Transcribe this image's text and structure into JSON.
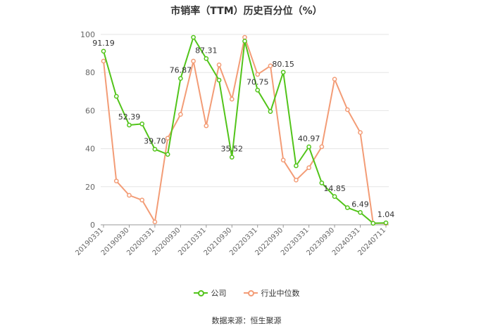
{
  "chart_data": {
    "type": "line",
    "title": "市销率（TTM）历史百分位（%）",
    "ylim": [
      0,
      100
    ],
    "yticks": [
      0,
      20,
      40,
      60,
      80,
      100
    ],
    "x_tick_labels": [
      "20190331",
      "20190930",
      "20200331",
      "20200930",
      "20210331",
      "20210930",
      "20220331",
      "20220930",
      "20230331",
      "20230930",
      "20240331",
      "20240711"
    ],
    "grid": "horizontal",
    "legend_position": "bottom",
    "x": [
      "20190331",
      "20190630",
      "20190930",
      "20191231",
      "20200331",
      "20200630",
      "20200930",
      "20201231",
      "20210331",
      "20210630",
      "20210930",
      "20211231",
      "20220331",
      "20220630",
      "20220930",
      "20221231",
      "20230331",
      "20230630",
      "20230930",
      "20231231",
      "20240331",
      "20240630",
      "20240711"
    ],
    "series": [
      {
        "name": "公司",
        "color": "#52c41a",
        "values": [
          91.19,
          67.5,
          52.39,
          53.0,
          39.7,
          37.0,
          76.87,
          98.5,
          87.31,
          76.0,
          35.52,
          96.5,
          70.75,
          59.5,
          80.15,
          31.0,
          40.97,
          22.0,
          14.85,
          9.0,
          6.49,
          0.8,
          1.04
        ],
        "labels": [
          "91.19",
          "",
          "52.39",
          "",
          "39.70",
          "",
          "76.87",
          "",
          "87.31",
          "",
          "35.52",
          "",
          "70.75",
          "",
          "80.15",
          "",
          "40.97",
          "",
          "14.85",
          "",
          "6.49",
          "",
          "1.04"
        ]
      },
      {
        "name": "行业中位数",
        "color": "#f39c76",
        "values": [
          86.0,
          23.0,
          15.5,
          13.0,
          1.5,
          45.5,
          58.0,
          86.0,
          52.0,
          84.0,
          66.0,
          98.5,
          79.0,
          83.5,
          34.0,
          23.5,
          30.0,
          41.0,
          76.5,
          60.5,
          48.5,
          0.8,
          0.8
        ]
      }
    ]
  },
  "legend": {
    "series_0": "公司",
    "series_1": "行业中位数"
  },
  "source": "数据来源：恒生聚源"
}
